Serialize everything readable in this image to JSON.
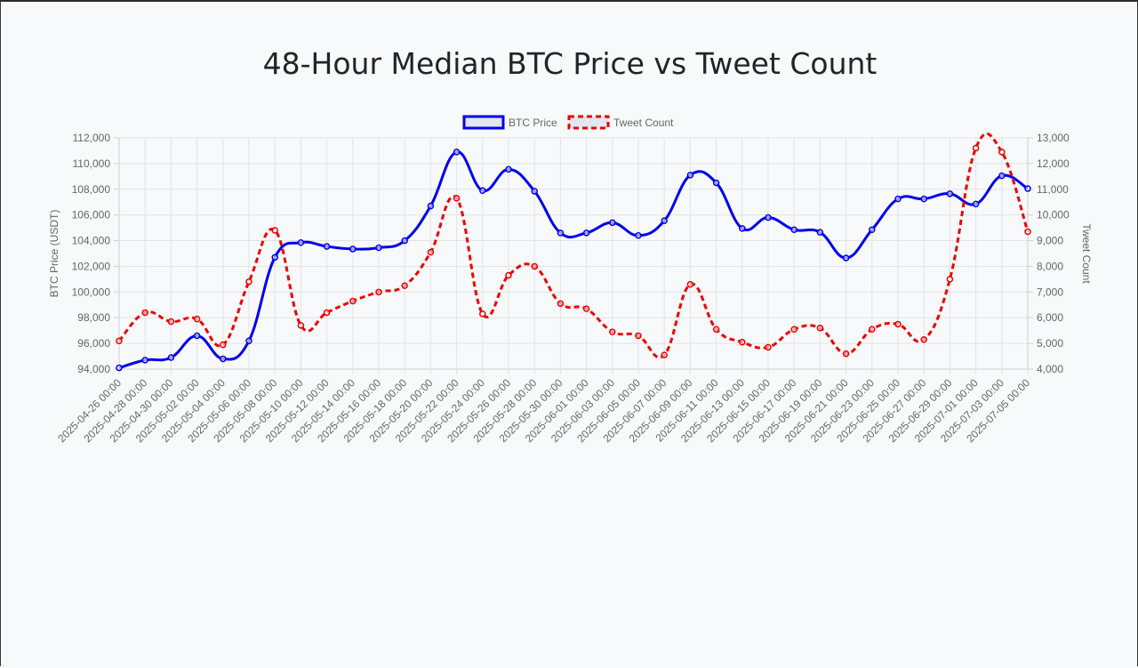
{
  "chart_data": {
    "type": "line",
    "title": "48-Hour Median BTC Price vs Tweet Count",
    "x": [
      "2025-04-26 00:00",
      "2025-04-28 00:00",
      "2025-04-30 00:00",
      "2025-05-02 00:00",
      "2025-05-04 00:00",
      "2025-05-06 00:00",
      "2025-05-08 00:00",
      "2025-05-10 00:00",
      "2025-05-12 00:00",
      "2025-05-14 00:00",
      "2025-05-16 00:00",
      "2025-05-18 00:00",
      "2025-05-20 00:00",
      "2025-05-22 00:00",
      "2025-05-24 00:00",
      "2025-05-26 00:00",
      "2025-05-28 00:00",
      "2025-05-30 00:00",
      "2025-06-01 00:00",
      "2025-06-03 00:00",
      "2025-06-05 00:00",
      "2025-06-07 00:00",
      "2025-06-09 00:00",
      "2025-06-11 00:00",
      "2025-06-13 00:00",
      "2025-06-15 00:00",
      "2025-06-17 00:00",
      "2025-06-19 00:00",
      "2025-06-21 00:00",
      "2025-06-23 00:00",
      "2025-06-25 00:00",
      "2025-06-27 00:00",
      "2025-06-29 00:00",
      "2025-07-01 00:00",
      "2025-07-03 00:00",
      "2025-07-05 00:00"
    ],
    "series": [
      {
        "name": "BTC Price",
        "axis": "left",
        "color": "#0000ee",
        "style": "solid",
        "values": [
          94100,
          94700,
          94900,
          96600,
          94800,
          96200,
          102700,
          103850,
          103550,
          103350,
          103450,
          104000,
          106700,
          110900,
          107900,
          109550,
          107850,
          104600,
          104600,
          105400,
          104400,
          105550,
          109100,
          108500,
          104950,
          105800,
          104850,
          104650,
          102650,
          104850,
          107250,
          107250,
          107650,
          106850,
          109050,
          108050
        ]
      },
      {
        "name": "Tweet Count",
        "axis": "right",
        "color": "#ee0000",
        "style": "dashed",
        "values": [
          5100,
          6200,
          5850,
          5950,
          4950,
          7400,
          9400,
          5700,
          6200,
          6650,
          7000,
          7250,
          8550,
          10650,
          6150,
          7650,
          8000,
          6550,
          6350,
          5450,
          5300,
          4550,
          7300,
          5550,
          5050,
          4850,
          5550,
          5600,
          4600,
          5550,
          5750,
          5150,
          7500,
          12600,
          12450,
          9350
        ]
      }
    ],
    "y_left": {
      "label": "BTC Price (USDT)",
      "min": 94000,
      "max": 112000,
      "step": 2000
    },
    "y_right": {
      "label": "Tweet Count",
      "min": 4000,
      "max": 13000,
      "step": 1000
    },
    "legend_position": "top",
    "grid": true
  }
}
